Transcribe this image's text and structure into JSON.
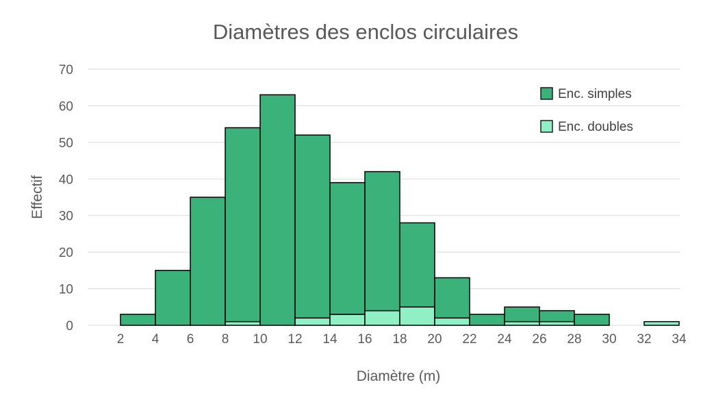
{
  "chart_data": {
    "type": "bar",
    "stacked": true,
    "title": "Diamètres des enclos circulaires",
    "xlabel": "Diamètre (m)",
    "ylabel": "Effectif",
    "ylim": [
      0,
      70
    ],
    "yticks": [
      "0",
      "10",
      "20",
      "30",
      "40",
      "50",
      "60",
      "70"
    ],
    "xticks": [
      "2",
      "4",
      "6",
      "8",
      "10",
      "12",
      "14",
      "16",
      "18",
      "20",
      "22",
      "24",
      "26",
      "28",
      "30",
      "32",
      "34"
    ],
    "xlim": [
      2,
      34
    ],
    "bin_width": 2,
    "grid": true,
    "legend_position": "top-right",
    "bins": [
      {
        "from": 2,
        "to": 4,
        "simples": 3,
        "doubles": 0
      },
      {
        "from": 4,
        "to": 6,
        "simples": 15,
        "doubles": 0
      },
      {
        "from": 6,
        "to": 8,
        "simples": 35,
        "doubles": 0
      },
      {
        "from": 8,
        "to": 10,
        "simples": 53,
        "doubles": 1
      },
      {
        "from": 10,
        "to": 12,
        "simples": 63,
        "doubles": 0
      },
      {
        "from": 12,
        "to": 14,
        "simples": 50,
        "doubles": 2
      },
      {
        "from": 14,
        "to": 16,
        "simples": 36,
        "doubles": 3
      },
      {
        "from": 16,
        "to": 18,
        "simples": 38,
        "doubles": 4
      },
      {
        "from": 18,
        "to": 20,
        "simples": 23,
        "doubles": 5
      },
      {
        "from": 20,
        "to": 22,
        "simples": 11,
        "doubles": 2
      },
      {
        "from": 22,
        "to": 24,
        "simples": 3,
        "doubles": 0
      },
      {
        "from": 24,
        "to": 26,
        "simples": 4,
        "doubles": 1
      },
      {
        "from": 26,
        "to": 28,
        "simples": 3,
        "doubles": 1
      },
      {
        "from": 28,
        "to": 30,
        "simples": 3,
        "doubles": 0
      },
      {
        "from": 30,
        "to": 32,
        "simples": 0,
        "doubles": 0
      },
      {
        "from": 32,
        "to": 34,
        "simples": 0,
        "doubles": 1
      }
    ],
    "series": [
      {
        "key": "doubles",
        "name": "Enc. doubles",
        "color": "#8ff0c6"
      },
      {
        "key": "simples",
        "name": "Enc. simples",
        "color": "#3cb27b"
      }
    ],
    "legend": [
      {
        "name": "Enc. simples",
        "color": "#3cb27b"
      },
      {
        "name": "Enc. doubles",
        "color": "#8ff0c6"
      }
    ]
  }
}
